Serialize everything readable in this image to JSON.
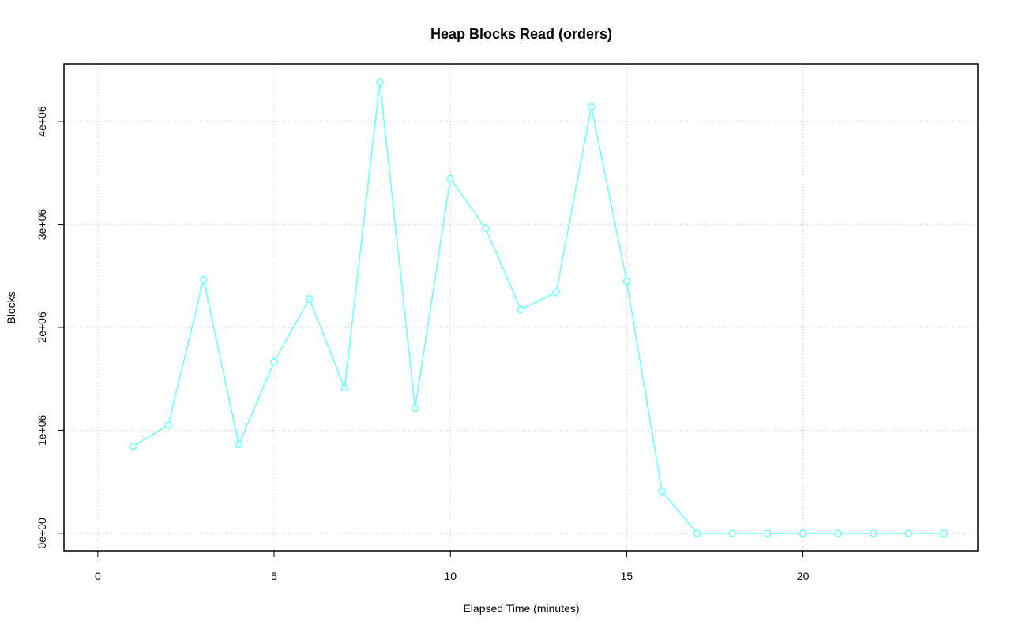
{
  "chart_data": {
    "type": "line",
    "title": "Heap Blocks Read (orders)",
    "x_label": "Elapsed Time (minutes)",
    "y_label": "Blocks",
    "x": [
      1,
      2,
      3,
      4,
      5,
      6,
      7,
      8,
      9,
      10,
      11,
      12,
      13,
      14,
      15,
      16,
      17,
      18,
      19,
      20,
      21,
      22,
      23,
      24
    ],
    "series": [
      {
        "name": "orders",
        "color": "#66ffff",
        "values": [
          844000,
          1051000,
          2464000,
          860000,
          1665000,
          2279000,
          1412000,
          4382000,
          1213000,
          3446000,
          2962000,
          2172000,
          2341000,
          4144000,
          2448000,
          407000,
          0,
          0,
          0,
          0,
          0,
          0,
          0,
          0
        ]
      }
    ],
    "xlim": [
      -0.96,
      24.96
    ],
    "ylim": [
      -170000,
      4560000
    ],
    "xticks": [
      0,
      5,
      10,
      15,
      20
    ],
    "yticks": [
      {
        "value": 0,
        "label": "0e+00"
      },
      {
        "value": 1000000,
        "label": "1e+06"
      },
      {
        "value": 2000000,
        "label": "2e+06"
      },
      {
        "value": 3000000,
        "label": "3e+06"
      },
      {
        "value": 4000000,
        "label": "4e+06"
      }
    ],
    "grid": true
  }
}
